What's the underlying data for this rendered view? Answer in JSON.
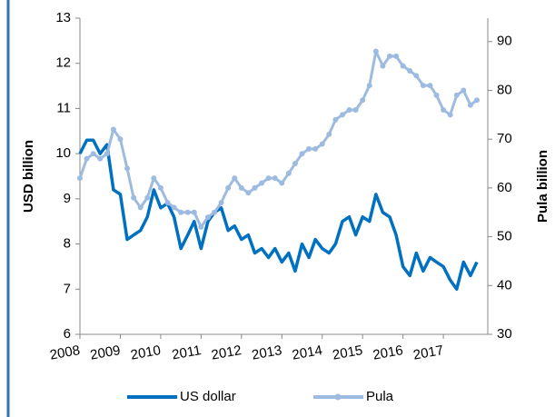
{
  "chart_data": {
    "type": "line",
    "y_label": "USD billion",
    "y2_label": "Pula billion",
    "x": [
      2008,
      2008.17,
      2008.33,
      2008.5,
      2008.67,
      2008.83,
      2009,
      2009.17,
      2009.33,
      2009.5,
      2009.67,
      2009.83,
      2010,
      2010.17,
      2010.33,
      2010.5,
      2010.67,
      2010.83,
      2011,
      2011.17,
      2011.33,
      2011.5,
      2011.67,
      2011.83,
      2012,
      2012.17,
      2012.33,
      2012.5,
      2012.67,
      2012.83,
      2013,
      2013.17,
      2013.33,
      2013.5,
      2013.67,
      2013.83,
      2014,
      2014.17,
      2014.33,
      2014.5,
      2014.67,
      2014.83,
      2015,
      2015.17,
      2015.33,
      2015.5,
      2015.67,
      2015.83,
      2016,
      2016.17,
      2016.33,
      2016.5,
      2016.67,
      2016.83,
      2017,
      2017.17,
      2017.33,
      2017.5,
      2017.67,
      2017.83
    ],
    "series": [
      {
        "name": "US dollar",
        "color": "#0070c0",
        "axis": "y",
        "values": [
          10.0,
          10.3,
          10.3,
          10.0,
          10.2,
          9.2,
          9.1,
          8.1,
          8.2,
          8.3,
          8.6,
          9.2,
          8.8,
          8.9,
          8.6,
          7.9,
          8.2,
          8.5,
          7.9,
          8.5,
          8.7,
          8.8,
          8.3,
          8.4,
          8.1,
          8.2,
          7.8,
          7.9,
          7.7,
          7.9,
          7.6,
          7.8,
          7.4,
          8.0,
          7.7,
          8.1,
          7.9,
          7.8,
          8.0,
          8.5,
          8.6,
          8.2,
          8.6,
          8.5,
          9.1,
          8.7,
          8.6,
          8.2,
          7.5,
          7.3,
          7.8,
          7.4,
          7.7,
          7.6,
          7.5,
          7.2,
          7.0,
          7.6,
          7.3,
          7.6
        ]
      },
      {
        "name": "Pula",
        "color": "#9dbbe0",
        "axis": "y2",
        "values": [
          62,
          66,
          67,
          66,
          67,
          72,
          70,
          64,
          58,
          56,
          58,
          62,
          60,
          57,
          56,
          55,
          55,
          55,
          52,
          54,
          55,
          57,
          60,
          62,
          60,
          59,
          60,
          61,
          62,
          62,
          61,
          63,
          65,
          67,
          68,
          68,
          69,
          71,
          74,
          75,
          76,
          76,
          78,
          81,
          88,
          85,
          87,
          87,
          85,
          84,
          83,
          81,
          81,
          79,
          76,
          75,
          79,
          80,
          77,
          78
        ]
      }
    ],
    "xlim": [
      2008,
      2018.1
    ],
    "xticks": [
      2008,
      2009,
      2010,
      2011,
      2012,
      2013,
      2014,
      2015,
      2016,
      2017
    ],
    "ylim": [
      6,
      13
    ],
    "yticks": [
      6,
      7,
      8,
      9,
      10,
      11,
      12,
      13
    ],
    "y2lim": [
      30,
      94.8
    ],
    "y2ticks": [
      30,
      40,
      50,
      60,
      70,
      80,
      90
    ],
    "legend": "bottom"
  }
}
